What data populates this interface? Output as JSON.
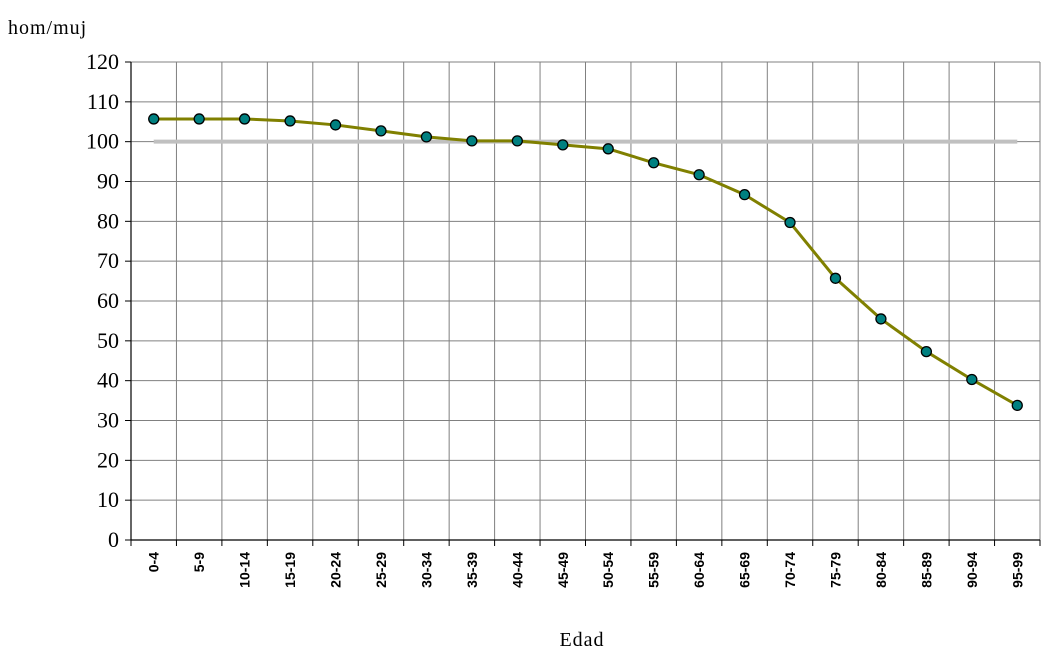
{
  "chart_data": {
    "type": "line",
    "ylabel": "hom/muj",
    "xlabel": "Edad",
    "ylim": [
      0,
      120
    ],
    "yticks": [
      0,
      10,
      20,
      30,
      40,
      50,
      60,
      70,
      80,
      90,
      100,
      110,
      120
    ],
    "categories": [
      "0-4",
      "5-9",
      "10-14",
      "15-19",
      "20-24",
      "25-29",
      "30-34",
      "35-39",
      "40-44",
      "45-49",
      "50-54",
      "55-59",
      "60-64",
      "65-69",
      "70-74",
      "75-79",
      "80-84",
      "85-89",
      "90-94",
      "95-99"
    ],
    "series": [
      {
        "values": [
          105.7,
          105.7,
          105.7,
          105.2,
          104.2,
          102.7,
          101.2,
          100.2,
          100.2,
          99.2,
          98.2,
          94.7,
          91.7,
          86.7,
          79.7,
          65.7,
          55.5,
          47.3,
          40.3,
          33.8
        ],
        "color": "#808000",
        "marker_color": "#008080"
      }
    ],
    "reference_line": {
      "value": 100,
      "color": "#c0c0c0"
    },
    "grid": true
  }
}
